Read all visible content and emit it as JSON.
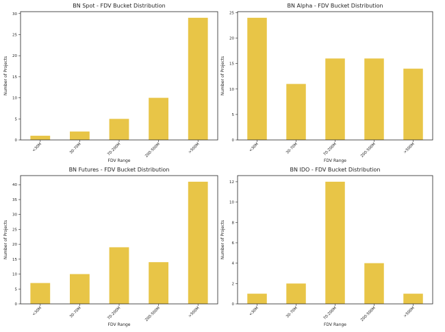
{
  "chart_data": [
    {
      "type": "bar",
      "title": "BN Spot - FDV Bucket Distribution",
      "xlabel": "FDV Range",
      "ylabel": "Number of Projects",
      "categories": [
        "<30M",
        "30-70M",
        "70-200M",
        "200-500M",
        ">500M"
      ],
      "values": [
        1,
        2,
        5,
        10,
        29
      ],
      "ylim": [
        0,
        30.45
      ],
      "yticks": [
        0,
        5,
        10,
        15,
        20,
        25,
        30
      ],
      "color": "#e8c547"
    },
    {
      "type": "bar",
      "title": "BN Alpha - FDV Bucket Distribution",
      "xlabel": "FDV Range",
      "ylabel": "Number of Projects",
      "categories": [
        "<30M",
        "30-70M",
        "70-200M",
        "200-500M",
        ">500M"
      ],
      "values": [
        24,
        11,
        16,
        16,
        14
      ],
      "ylim": [
        0,
        25.2
      ],
      "yticks": [
        0,
        5,
        10,
        15,
        20,
        25
      ],
      "color": "#e8c547"
    },
    {
      "type": "bar",
      "title": "BN Futures - FDV Bucket Distribution",
      "xlabel": "FDV Range",
      "ylabel": "Number of Projects",
      "categories": [
        "<30M",
        "30-70M",
        "70-200M",
        "200-500M",
        ">500M"
      ],
      "values": [
        7,
        10,
        19,
        14,
        41
      ],
      "ylim": [
        0,
        43.05
      ],
      "yticks": [
        0,
        5,
        10,
        15,
        20,
        25,
        30,
        35,
        40
      ],
      "color": "#e8c547"
    },
    {
      "type": "bar",
      "title": "BN IDO - FDV Bucket Distribution",
      "xlabel": "FDV Range",
      "ylabel": "Number of Projects",
      "categories": [
        "<30M",
        "30-70M",
        "70-200M",
        "200-500M",
        ">500M"
      ],
      "values": [
        1,
        2,
        12,
        4,
        1
      ],
      "ylim": [
        0,
        12.6
      ],
      "yticks": [
        0,
        2,
        4,
        6,
        8,
        10,
        12
      ],
      "color": "#e8c547"
    }
  ]
}
